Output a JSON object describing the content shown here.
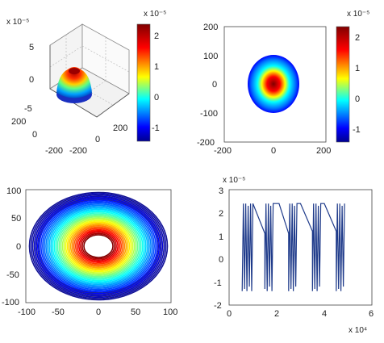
{
  "chart_data": [
    {
      "type": "surface",
      "panel": "top-left",
      "exponent_label": "x 10⁻⁵",
      "colorbar_exponent_label": "x 10⁻⁵",
      "z_ticks": [
        "5",
        "0",
        "-5"
      ],
      "x_ticks": [
        "200",
        "0",
        "-200"
      ],
      "y_ticks": [
        "-200",
        "0",
        "200"
      ],
      "colorbar_ticks": [
        "2",
        "1",
        "0",
        "-1"
      ],
      "colorbar_range": [
        -1.5,
        2.4
      ],
      "zlim": [
        -5,
        5
      ],
      "grid": true,
      "peak_value": 2.4
    },
    {
      "type": "heatmap",
      "panel": "top-right",
      "colorbar_exponent_label": "x 10⁻⁵",
      "x_ticks": [
        "-200",
        "0",
        "200"
      ],
      "y_ticks": [
        "200",
        "100",
        "0",
        "-100",
        "-200"
      ],
      "colorbar_ticks": [
        "2",
        "1",
        "0",
        "-1"
      ],
      "colorbar_range": [
        -1.5,
        2.4
      ],
      "xlim": [
        -200,
        200
      ],
      "ylim": [
        -200,
        200
      ],
      "rings_radius": [
        100,
        88,
        74,
        60,
        46,
        32
      ],
      "grid": false
    },
    {
      "type": "contour",
      "panel": "bottom-left",
      "x_ticks": [
        "-100",
        "-50",
        "0",
        "50",
        "100"
      ],
      "y_ticks": [
        "100",
        "50",
        "0",
        "-50",
        "-100"
      ],
      "xlim": [
        -100,
        100
      ],
      "ylim": [
        -100,
        100
      ],
      "outer_radius": 95,
      "inner_radius": 20,
      "grid": false
    },
    {
      "type": "line",
      "panel": "bottom-right",
      "y_exponent_label": "x 10⁻⁵",
      "x_exponent_label": "x 10⁴",
      "x_ticks": [
        "0",
        "2",
        "4",
        "6"
      ],
      "y_ticks": [
        "3",
        "2",
        "1",
        "0",
        "-1",
        "-2"
      ],
      "xlim": [
        0,
        6
      ],
      "ylim": [
        -2,
        3
      ],
      "series": [
        {
          "color": "#1e3a8a",
          "x": [
            0.55,
            0.6,
            0.65,
            0.7,
            0.75,
            0.8,
            0.85,
            0.9,
            0.95,
            1.0,
            1.5,
            1.5,
            1.55,
            1.6,
            1.65,
            1.7,
            1.75,
            1.8,
            1.85,
            2.1,
            2.5,
            2.5,
            2.55,
            2.6,
            2.65,
            2.7,
            2.75,
            2.8,
            2.85,
            3.0,
            3.5,
            3.5,
            3.55,
            3.6,
            3.65,
            3.7,
            3.75,
            3.8,
            3.85,
            4.0,
            4.5,
            4.5,
            4.55,
            4.6,
            4.65,
            4.7,
            4.75,
            4.8,
            4.85
          ],
          "y": [
            -1.4,
            2.4,
            -1.3,
            2.4,
            -1.4,
            2.3,
            -1.2,
            2.4,
            -1.4,
            2.4,
            1.1,
            -1.3,
            2.4,
            -1.4,
            2.4,
            -1.2,
            2.3,
            -1.4,
            2.4,
            2.4,
            1.1,
            -1.4,
            2.4,
            -1.3,
            2.4,
            -1.4,
            2.3,
            -1.2,
            2.4,
            2.4,
            1.2,
            -1.4,
            2.4,
            -1.3,
            2.4,
            -1.4,
            2.3,
            -1.2,
            2.4,
            2.4,
            1.2,
            -1.4,
            2.4,
            -1.3,
            2.4,
            -1.4,
            2.3,
            -1.2,
            2.4
          ]
        }
      ]
    }
  ]
}
